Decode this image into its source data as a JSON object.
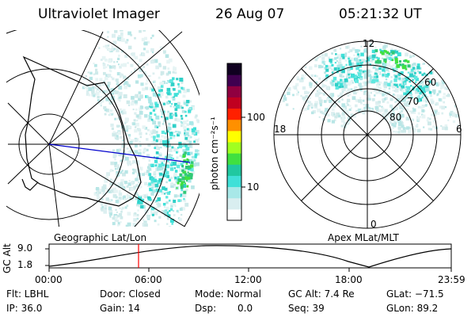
{
  "header": {
    "instrument": "Ultraviolet Imager",
    "date": "26 Aug 07",
    "time": "05:21:32 UT"
  },
  "colorbar": {
    "unit_label": "photon cm⁻²s⁻¹",
    "ticks": [
      "100",
      "10"
    ],
    "colors": [
      "#ffffff",
      "#d9eef0",
      "#a8e8e8",
      "#40e0d8",
      "#20c8a0",
      "#40e040",
      "#a0ff20",
      "#ffff00",
      "#ff9000",
      "#ff2000",
      "#c00020",
      "#900040",
      "#400050",
      "#100020"
    ]
  },
  "left_map": {
    "label": "Geographic Lat/Lon"
  },
  "right_map": {
    "label": "Apex MLat/MLT",
    "mlt_labels": {
      "top": "12",
      "left": "18",
      "right": "6",
      "bottom": "0"
    },
    "lat_labels": [
      "60",
      "70",
      "80"
    ]
  },
  "altitude_plot": {
    "ylabel": "GC Alt",
    "y_ticks": [
      "9.0",
      "1.8"
    ],
    "x_ticks": [
      "00:00",
      "06:00",
      "12:00",
      "18:00",
      "23:59"
    ],
    "marker_color": "#ff0000"
  },
  "status": {
    "row1": {
      "flt": "Flt: LBHL",
      "door": "Door: Closed",
      "mode": "Mode: Normal",
      "gc_alt": "GC Alt: 7.4 Re",
      "glat": "GLat: −71.5"
    },
    "row2": {
      "ip": "IP: 36.0",
      "gain": "Gain: 14",
      "dsp_label": "Dsp:",
      "dsp_value": "0.0",
      "seq": "Seq: 39",
      "glon": "GLon:  89.2"
    }
  }
}
